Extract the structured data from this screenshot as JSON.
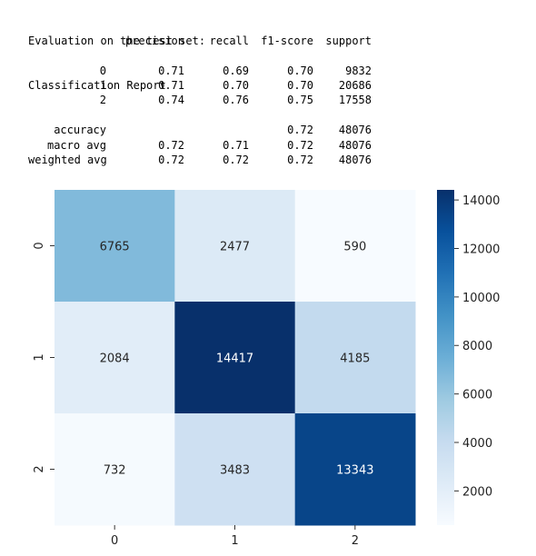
{
  "report": {
    "heading": "Evaluation on the test set:",
    "title": "Classification Report",
    "columns": [
      "precision",
      "recall",
      "f1-score",
      "support"
    ],
    "rows": [
      {
        "label": "0",
        "precision": "0.71",
        "recall": "0.69",
        "f1": "0.70",
        "support": "9832"
      },
      {
        "label": "1",
        "precision": "0.71",
        "recall": "0.70",
        "f1": "0.70",
        "support": "20686"
      },
      {
        "label": "2",
        "precision": "0.74",
        "recall": "0.76",
        "f1": "0.75",
        "support": "17558"
      }
    ],
    "summary": [
      {
        "label": "accuracy",
        "precision": "",
        "recall": "",
        "f1": "0.72",
        "support": "48076"
      },
      {
        "label": "macro avg",
        "precision": "0.72",
        "recall": "0.71",
        "f1": "0.72",
        "support": "48076"
      },
      {
        "label": "weighted avg",
        "precision": "0.72",
        "recall": "0.72",
        "f1": "0.72",
        "support": "48076"
      }
    ]
  },
  "chart_data": {
    "type": "heatmap",
    "x_tick_labels": [
      "0",
      "1",
      "2"
    ],
    "y_tick_labels": [
      "0",
      "1",
      "2"
    ],
    "matrix": [
      [
        6765,
        2477,
        590
      ],
      [
        2084,
        14417,
        4185
      ],
      [
        732,
        3483,
        13343
      ]
    ],
    "colormap": "Blues",
    "color_range": [
      590,
      14417
    ],
    "colorbar_ticks": [
      2000,
      4000,
      6000,
      8000,
      10000,
      12000,
      14000
    ],
    "annotated": true,
    "grid": false,
    "title": "",
    "xlabel": "",
    "ylabel": ""
  }
}
